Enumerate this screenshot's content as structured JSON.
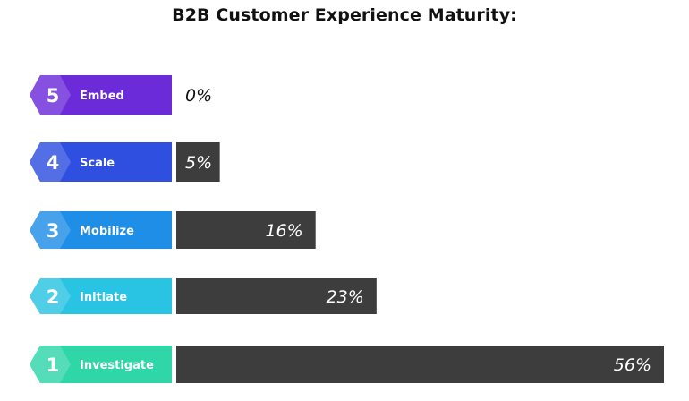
{
  "chart_data": {
    "type": "bar",
    "orientation": "horizontal",
    "title": "B2B Customer Experience Maturity:",
    "xlabel": "",
    "ylabel": "",
    "xlim": [
      0,
      56
    ],
    "grid": false,
    "categories": [
      {
        "number": "5",
        "label": "Embed",
        "value": 0,
        "value_label": "0%",
        "color": "#6c2bd9"
      },
      {
        "number": "4",
        "label": "Scale",
        "value": 5,
        "value_label": "5%",
        "color": "#2e4fe0"
      },
      {
        "number": "3",
        "label": "Mobilize",
        "value": 16,
        "value_label": "16%",
        "color": "#1e8ee6"
      },
      {
        "number": "2",
        "label": "Initiate",
        "value": 23,
        "value_label": "23%",
        "color": "#29c3e3"
      },
      {
        "number": "1",
        "label": "Investigate",
        "value": 56,
        "value_label": "56%",
        "color": "#2fd6a8"
      }
    ],
    "bar_color": "#3d3d3d"
  }
}
